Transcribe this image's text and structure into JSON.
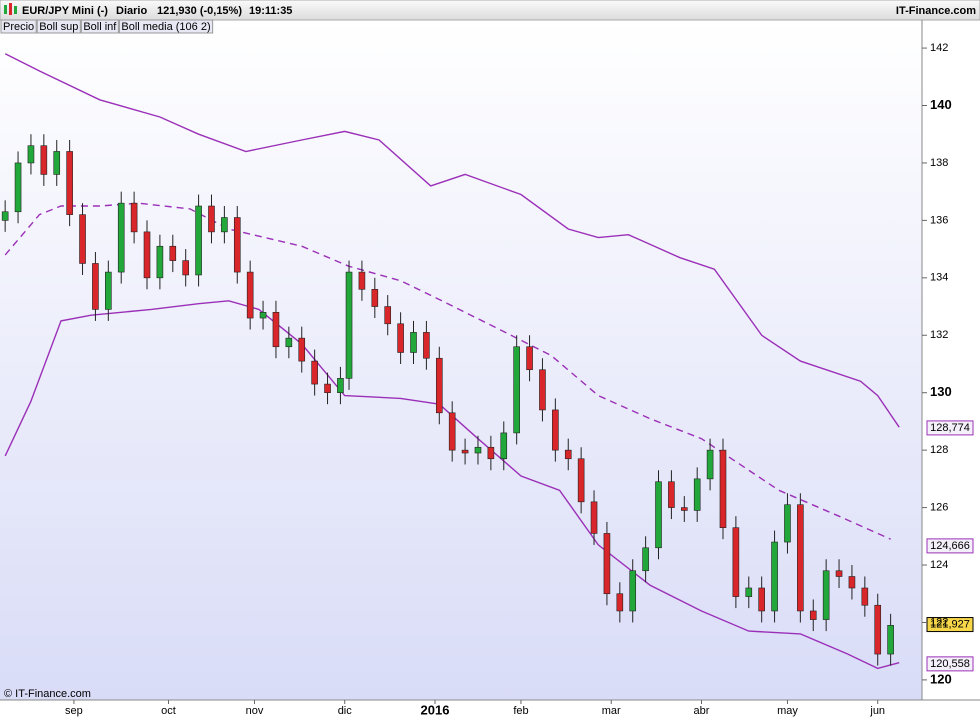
{
  "chart_data": {
    "type": "candlestick",
    "header": {
      "instrument": "EUR/JPY Mini (-)",
      "period": "Diario",
      "quote": "121,930 (-0,15%)",
      "time": "19:11:35",
      "brand": "IT-Finance.com"
    },
    "footer": "© IT-Finance.com",
    "price_name": "Precio",
    "x": [
      0,
      3,
      6,
      9,
      12,
      15,
      18,
      21,
      24,
      27,
      30,
      33,
      36,
      39,
      42,
      45,
      48,
      51,
      54,
      57,
      60,
      63,
      66,
      69,
      72,
      75,
      78,
      80,
      83,
      86,
      89,
      92,
      95,
      98,
      101,
      104,
      107,
      110,
      113,
      116,
      119,
      122,
      125,
      128,
      131,
      134,
      137,
      140,
      143,
      146,
      149,
      152,
      155,
      158,
      161,
      164,
      167,
      170,
      173,
      176,
      179,
      182,
      185,
      188,
      191,
      194,
      197,
      200,
      203,
      206
    ],
    "open": [
      136.0,
      136.3,
      138.0,
      138.6,
      137.6,
      138.4,
      136.2,
      134.5,
      132.9,
      134.2,
      136.6,
      135.6,
      134.0,
      135.1,
      134.6,
      134.1,
      136.5,
      135.6,
      136.1,
      134.2,
      132.6,
      132.8,
      131.6,
      131.9,
      131.1,
      130.3,
      130.0,
      130.5,
      134.2,
      133.6,
      133.0,
      132.4,
      131.4,
      132.1,
      131.2,
      129.3,
      128.0,
      127.9,
      128.1,
      127.7,
      128.6,
      131.6,
      130.8,
      129.4,
      128.0,
      127.7,
      126.2,
      125.1,
      123.0,
      122.4,
      123.8,
      124.6,
      126.9,
      126.0,
      125.9,
      127.0,
      128.0,
      125.3,
      122.9,
      123.2,
      122.4,
      124.8,
      126.1,
      122.4,
      122.1,
      123.8,
      123.6,
      123.2,
      122.6,
      120.9
    ],
    "high": [
      136.7,
      138.4,
      139.0,
      139.0,
      138.8,
      138.8,
      136.6,
      134.9,
      134.6,
      137.0,
      137.0,
      136.0,
      135.5,
      135.5,
      135.0,
      136.9,
      136.9,
      136.5,
      136.5,
      134.6,
      133.2,
      133.2,
      132.3,
      132.3,
      131.5,
      130.7,
      130.9,
      134.6,
      134.6,
      134.0,
      133.4,
      132.8,
      132.5,
      132.5,
      131.6,
      129.7,
      128.4,
      128.5,
      128.5,
      129.0,
      132.0,
      132.0,
      131.2,
      129.8,
      128.4,
      128.1,
      126.6,
      125.5,
      123.4,
      124.2,
      125.0,
      127.3,
      127.3,
      126.4,
      127.4,
      128.4,
      128.4,
      125.7,
      123.6,
      123.6,
      125.2,
      126.5,
      126.5,
      122.8,
      124.2,
      124.2,
      124.0,
      123.6,
      123.0,
      122.3
    ],
    "low": [
      135.6,
      135.9,
      137.6,
      137.2,
      137.2,
      135.8,
      134.1,
      132.5,
      132.5,
      133.8,
      135.2,
      133.6,
      133.6,
      134.2,
      133.7,
      133.7,
      135.2,
      135.2,
      133.8,
      132.2,
      132.2,
      131.2,
      131.2,
      130.7,
      129.9,
      129.6,
      129.6,
      130.1,
      133.2,
      132.6,
      132.0,
      131.0,
      131.0,
      130.8,
      128.9,
      127.6,
      127.5,
      127.5,
      127.3,
      127.3,
      128.2,
      130.4,
      129.0,
      127.6,
      127.3,
      125.8,
      124.7,
      122.6,
      122.0,
      122.0,
      123.4,
      124.2,
      125.6,
      125.5,
      125.5,
      126.6,
      124.9,
      122.5,
      122.5,
      122.0,
      122.0,
      124.4,
      122.0,
      121.7,
      121.7,
      123.2,
      122.8,
      122.2,
      120.5,
      120.5
    ],
    "close": [
      136.3,
      138.0,
      138.6,
      137.6,
      138.4,
      136.2,
      134.5,
      132.9,
      134.2,
      136.6,
      135.6,
      134.0,
      135.1,
      134.6,
      134.1,
      136.5,
      135.6,
      136.1,
      134.2,
      132.6,
      132.8,
      131.6,
      131.9,
      131.1,
      130.3,
      130.0,
      130.5,
      134.2,
      133.6,
      133.0,
      132.4,
      131.4,
      132.1,
      131.2,
      129.3,
      128.0,
      127.9,
      128.1,
      127.7,
      128.6,
      131.6,
      130.8,
      129.4,
      128.0,
      127.7,
      126.2,
      125.1,
      123.0,
      122.4,
      123.8,
      124.6,
      126.9,
      126.0,
      125.9,
      127.0,
      128.0,
      125.3,
      122.9,
      123.2,
      122.4,
      124.8,
      126.1,
      122.4,
      122.1,
      123.8,
      123.6,
      123.2,
      122.6,
      120.9,
      121.9
    ],
    "up_color": "#22a83a",
    "down_color": "#d9262a",
    "series": [
      {
        "name": "Boll sup",
        "color": "#9b30b8",
        "dash": false,
        "x": [
          0,
          8,
          22,
          36,
          45,
          56,
          69,
          79,
          87,
          99,
          107,
          120,
          131,
          138,
          145,
          157,
          165,
          176,
          185,
          199,
          203,
          208
        ],
        "values": [
          141.8,
          141.2,
          140.2,
          139.6,
          139.0,
          138.4,
          138.8,
          139.1,
          138.8,
          137.2,
          137.6,
          136.9,
          135.7,
          135.4,
          135.5,
          134.7,
          134.3,
          132.0,
          131.1,
          130.4,
          129.9,
          128.8
        ],
        "last_label": {
          "value": 128.774,
          "label": "128,774"
        }
      },
      {
        "name": "Boll inf",
        "color": "#9b30b8",
        "dash": false,
        "x": [
          0,
          6,
          13,
          20,
          34,
          45,
          52,
          59,
          69,
          79,
          92,
          101,
          110,
          120,
          129,
          138,
          150,
          162,
          173,
          185,
          196,
          203,
          208
        ],
        "values": [
          127.8,
          129.7,
          132.5,
          132.7,
          132.9,
          133.1,
          133.2,
          132.9,
          131.7,
          129.9,
          129.8,
          129.6,
          128.4,
          127.1,
          126.6,
          124.7,
          123.3,
          122.4,
          121.7,
          121.6,
          120.9,
          120.4,
          120.6
        ],
        "last_label": {
          "value": 120.558,
          "label": "120,558"
        }
      },
      {
        "name": "Boll media (106 2)",
        "color": "#9b30b8",
        "dash": true,
        "x": [
          0,
          8,
          13,
          22,
          31,
          43,
          52,
          69,
          80,
          92,
          103,
          115,
          127,
          138,
          150,
          162,
          169,
          180,
          194,
          206
        ],
        "values": [
          134.8,
          136.2,
          136.5,
          136.5,
          136.6,
          136.4,
          135.7,
          135.1,
          134.4,
          133.9,
          133.1,
          132.2,
          131.3,
          129.9,
          129.1,
          128.4,
          127.7,
          126.6,
          125.7,
          124.9
        ],
        "last_label": {
          "value": 124.666,
          "label": "124,666"
        }
      }
    ],
    "close_label": {
      "value": 121.927,
      "label": "121,927"
    },
    "xlim": [
      -1.2,
      213.3
    ],
    "xticks": [
      {
        "value": 16,
        "label": "sep"
      },
      {
        "value": 38,
        "label": "oct"
      },
      {
        "value": 58,
        "label": "nov"
      },
      {
        "value": 79,
        "label": "dic"
      },
      {
        "value": 100,
        "label": "2016"
      },
      {
        "value": 120,
        "label": "feb"
      },
      {
        "value": 141,
        "label": "mar"
      },
      {
        "value": 162,
        "label": "abr"
      },
      {
        "value": 182,
        "label": "may"
      },
      {
        "value": 203,
        "label": "jun"
      }
    ],
    "ylim": [
      119.3,
      142.49
    ],
    "yticks": [
      120,
      122,
      124,
      126,
      128,
      130,
      132,
      134,
      136,
      138,
      140,
      142
    ]
  }
}
